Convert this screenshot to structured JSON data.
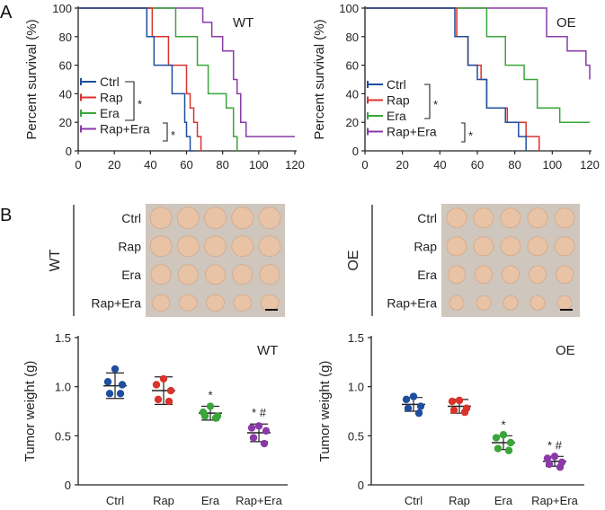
{
  "panel_letters": [
    "A",
    "B"
  ],
  "colors": {
    "Ctrl": "#1f4e9e",
    "Rap": "#d9332c",
    "Era": "#3aa53a",
    "Rap+Era": "#8a3aa8",
    "photo_background": "#cfc6bd",
    "tumor": "#e9c3a5"
  },
  "survival_wt": {
    "tag": "WT",
    "ylabel": "Percent survival (%)",
    "x_ticks": [
      "0",
      "20",
      "40",
      "60",
      "80",
      "100",
      "120"
    ],
    "y_ticks": [
      "0",
      "20",
      "40",
      "60",
      "80",
      "100"
    ],
    "legend": [
      "Ctrl",
      "Rap",
      "Era",
      "Rap+Era"
    ],
    "sig_marks": [
      "*",
      "*"
    ]
  },
  "survival_oe": {
    "tag": "OE",
    "ylabel": "Percent survival (%)",
    "x_ticks": [
      "0",
      "20",
      "40",
      "60",
      "80",
      "100",
      "120"
    ],
    "y_ticks": [
      "0",
      "20",
      "40",
      "60",
      "80",
      "100"
    ],
    "legend": [
      "Ctrl",
      "Rap",
      "Era",
      "Rap+Era"
    ],
    "sig_marks": [
      "*",
      "*"
    ]
  },
  "photos": {
    "wt": {
      "tag": "WT",
      "rows": [
        "Ctrl",
        "Rap",
        "Era",
        "Rap+Era"
      ]
    },
    "oe": {
      "tag": "OE",
      "rows": [
        "Ctrl",
        "Rap",
        "Era",
        "Rap+Era"
      ]
    }
  },
  "weight_wt": {
    "tag": "WT",
    "ylabel": "Tumor weight (g)",
    "y_ticks": [
      "0",
      "0.5",
      "1.0",
      "1.5"
    ],
    "marks": [
      "",
      "",
      "*",
      "* #"
    ]
  },
  "weight_oe": {
    "tag": "OE",
    "ylabel": "Tumor weight (g)",
    "y_ticks": [
      "0",
      "0.5",
      "1.0",
      "1.5"
    ],
    "marks": [
      "",
      "",
      "*",
      "* #"
    ]
  },
  "chart_data": [
    {
      "type": "line",
      "subtype": "kaplan-meier step",
      "title": "WT",
      "xlabel": "",
      "ylabel": "Percent survival (%)",
      "xlim": [
        0,
        120
      ],
      "ylim": [
        0,
        100
      ],
      "series": [
        {
          "name": "Ctrl",
          "x": [
            0,
            35,
            38,
            42,
            50,
            52,
            57,
            59,
            60,
            62,
            64
          ],
          "y": [
            100,
            100,
            80,
            60,
            60,
            40,
            40,
            20,
            10,
            0,
            0
          ]
        },
        {
          "name": "Rap",
          "x": [
            0,
            38,
            41,
            50,
            53,
            60,
            62,
            64,
            66,
            68
          ],
          "y": [
            100,
            100,
            80,
            60,
            60,
            40,
            30,
            20,
            10,
            0
          ]
        },
        {
          "name": "Era",
          "x": [
            0,
            50,
            54,
            60,
            66,
            72,
            82,
            86,
            88
          ],
          "y": [
            100,
            100,
            80,
            80,
            60,
            40,
            30,
            10,
            0
          ]
        },
        {
          "name": "Rap+Era",
          "x": [
            0,
            65,
            69,
            74,
            80,
            86,
            88,
            90,
            93,
            120
          ],
          "y": [
            100,
            100,
            90,
            80,
            70,
            50,
            40,
            20,
            10,
            10
          ]
        }
      ],
      "legend": [
        "Ctrl",
        "Rap",
        "Era",
        "Rap+Era"
      ],
      "annotations": [
        "* (Ctrl, Rap vs Era)",
        "* (Era vs Rap+Era)"
      ]
    },
    {
      "type": "line",
      "subtype": "kaplan-meier step",
      "title": "OE",
      "xlabel": "",
      "ylabel": "Percent survival (%)",
      "xlim": [
        0,
        120
      ],
      "ylim": [
        0,
        100
      ],
      "series": [
        {
          "name": "Ctrl",
          "x": [
            0,
            45,
            48,
            55,
            60,
            65,
            75,
            82,
            85,
            86
          ],
          "y": [
            100,
            100,
            80,
            60,
            50,
            30,
            20,
            10,
            10,
            0
          ]
        },
        {
          "name": "Rap",
          "x": [
            0,
            46,
            49,
            55,
            62,
            65,
            76,
            86,
            92,
            93
          ],
          "y": [
            100,
            100,
            80,
            60,
            50,
            30,
            20,
            10,
            10,
            0
          ]
        },
        {
          "name": "Era",
          "x": [
            0,
            55,
            65,
            75,
            85,
            92,
            104,
            120
          ],
          "y": [
            100,
            100,
            80,
            60,
            50,
            30,
            20,
            20
          ]
        },
        {
          "name": "Rap+Era",
          "x": [
            0,
            90,
            97,
            108,
            118,
            120
          ],
          "y": [
            100,
            100,
            80,
            70,
            60,
            50
          ]
        }
      ],
      "legend": [
        "Ctrl",
        "Rap",
        "Era",
        "Rap+Era"
      ],
      "annotations": [
        "* (Ctrl, Rap vs Era)",
        "* (Era vs Rap+Era)"
      ]
    },
    {
      "type": "scatter",
      "subtype": "dot plot with mean and SD",
      "title": "WT",
      "xlabel": "",
      "ylabel": "Tumor weight (g)",
      "ylim": [
        0,
        1.5
      ],
      "categories": [
        "Ctrl",
        "Rap",
        "Era",
        "Rap+Era"
      ],
      "series": [
        {
          "name": "Ctrl",
          "points": [
            1.18,
            1.05,
            1.02,
            0.93,
            0.93
          ],
          "mean": 1.01,
          "sd": 0.13
        },
        {
          "name": "Rap",
          "points": [
            1.08,
            1.02,
            0.96,
            0.87,
            0.85
          ],
          "mean": 0.96,
          "sd": 0.14
        },
        {
          "name": "Era",
          "points": [
            0.8,
            0.74,
            0.7,
            0.7,
            0.68
          ],
          "mean": 0.73,
          "sd": 0.07
        },
        {
          "name": "Rap+Era",
          "points": [
            0.6,
            0.58,
            0.55,
            0.48,
            0.42
          ],
          "mean": 0.53,
          "sd": 0.09
        }
      ],
      "annotations": [
        "*",
        "* #"
      ]
    },
    {
      "type": "scatter",
      "subtype": "dot plot with mean and SD",
      "title": "OE",
      "xlabel": "",
      "ylabel": "Tumor weight (g)",
      "ylim": [
        0,
        1.5
      ],
      "categories": [
        "Ctrl",
        "Rap",
        "Era",
        "Rap+Era"
      ],
      "series": [
        {
          "name": "Ctrl",
          "points": [
            0.9,
            0.87,
            0.8,
            0.78,
            0.73
          ],
          "mean": 0.82,
          "sd": 0.07
        },
        {
          "name": "Rap",
          "points": [
            0.86,
            0.85,
            0.78,
            0.76,
            0.74
          ],
          "mean": 0.8,
          "sd": 0.07
        },
        {
          "name": "Era",
          "points": [
            0.51,
            0.48,
            0.43,
            0.37,
            0.35
          ],
          "mean": 0.43,
          "sd": 0.07
        },
        {
          "name": "Rap+Era",
          "points": [
            0.29,
            0.27,
            0.23,
            0.21,
            0.18
          ],
          "mean": 0.24,
          "sd": 0.05
        }
      ],
      "annotations": [
        "*",
        "* #"
      ]
    }
  ]
}
